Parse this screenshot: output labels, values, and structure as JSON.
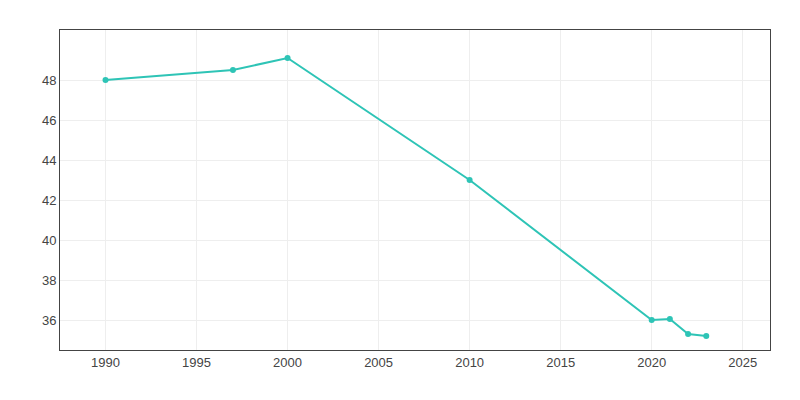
{
  "chart_data": {
    "type": "line",
    "x": [
      1990,
      1997,
      2000,
      2010,
      2020,
      2021,
      2022,
      2023
    ],
    "values": [
      48.0,
      48.5,
      49.1,
      43.0,
      36.0,
      36.05,
      35.3,
      35.2
    ],
    "color": "#2EC4B6",
    "marker": "circle",
    "xlim": [
      1987.5,
      2026.5
    ],
    "ylim": [
      34.5,
      50.5
    ],
    "xticks": [
      1990,
      1995,
      2000,
      2005,
      2010,
      2015,
      2020,
      2025
    ],
    "yticks": [
      36,
      38,
      40,
      42,
      44,
      46,
      48
    ],
    "grid": true
  }
}
